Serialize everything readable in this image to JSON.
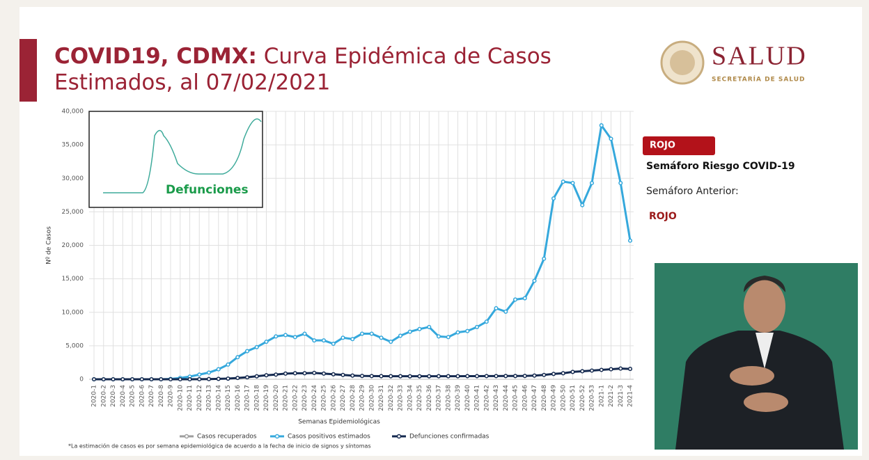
{
  "header": {
    "title_bold": "COVID19, CDMX:",
    "title_rest": " Curva Epidémica de Casos",
    "title_line2": "Estimados, al 07/02/2021"
  },
  "logo": {
    "name": "SALUD",
    "subtitle": "SECRETARÍA DE SALUD"
  },
  "semaforo": {
    "badge": "ROJO",
    "label": "Semáforo Riesgo COVID-19",
    "previous_label": "Semáforo Anterior:",
    "previous_value": "ROJO"
  },
  "inset": {
    "label": "Defunciones"
  },
  "footnote": "*La estimación de casos es por semana epidemiológica de acuerdo a la fecha de inicio de signos y síntomas",
  "chart_data": {
    "type": "line",
    "xlabel": "Semanas Epidemiológicas",
    "ylabel": "Nº de Casos",
    "categories": [
      "2020-1",
      "2020-2",
      "2020-3",
      "2020-4",
      "2020-5",
      "2020-6",
      "2020-7",
      "2020-8",
      "2020-9",
      "2020-10",
      "2020-11",
      "2020-12",
      "2020-13",
      "2020-14",
      "2020-15",
      "2020-16",
      "2020-17",
      "2020-18",
      "2020-19",
      "2020-20",
      "2020-21",
      "2020-22",
      "2020-23",
      "2020-24",
      "2020-25",
      "2020-26",
      "2020-27",
      "2020-28",
      "2020-29",
      "2020-30",
      "2020-31",
      "2020-32",
      "2020-33",
      "2020-34",
      "2020-35",
      "2020-36",
      "2020-37",
      "2020-38",
      "2020-39",
      "2020-40",
      "2020-41",
      "2020-42",
      "2020-43",
      "2020-44",
      "2020-45",
      "2020-46",
      "2020-47",
      "2020-48",
      "2020-49",
      "2020-50",
      "2020-51",
      "2020-52",
      "2020-53",
      "2021-1",
      "2021-2",
      "2021-3",
      "2021-4"
    ],
    "series": [
      {
        "name": "Casos recuperados",
        "color": "#9e9e9e",
        "values": [
          null,
          null,
          null,
          null,
          null,
          null,
          null,
          null,
          null,
          null,
          null,
          null,
          null,
          null,
          null,
          null,
          null,
          null,
          null,
          null,
          null,
          null,
          null,
          null,
          null,
          null,
          null,
          null,
          null,
          null,
          null,
          null,
          null,
          null,
          null,
          null,
          null,
          null,
          null,
          null,
          null,
          null,
          null,
          null,
          null,
          null,
          null,
          null,
          null,
          null,
          null,
          null,
          null,
          null,
          null,
          null,
          null
        ]
      },
      {
        "name": "Casos positivos estimados",
        "color": "#35a8dc",
        "values": [
          0,
          0,
          0,
          0,
          0,
          0,
          0,
          0,
          50,
          200,
          400,
          700,
          1000,
          1500,
          2200,
          3300,
          4200,
          4800,
          5600,
          6400,
          6600,
          6300,
          6800,
          5800,
          5800,
          5300,
          6200,
          6000,
          6800,
          6800,
          6200,
          5600,
          6500,
          7100,
          7500,
          7800,
          6400,
          6300,
          7000,
          7200,
          7800,
          8600,
          10600,
          10100,
          11900,
          12100,
          14700,
          18000,
          27000,
          29500,
          29300,
          26000,
          29300,
          37900,
          35900,
          29300,
          20700
        ]
      },
      {
        "name": "Defunciones confirmadas",
        "color": "#14294f",
        "values": [
          0,
          0,
          0,
          0,
          0,
          0,
          0,
          0,
          0,
          0,
          0,
          10,
          30,
          60,
          100,
          200,
          300,
          450,
          600,
          700,
          850,
          900,
          900,
          950,
          850,
          750,
          650,
          550,
          500,
          480,
          470,
          460,
          460,
          450,
          450,
          450,
          460,
          460,
          460,
          470,
          470,
          480,
          480,
          490,
          490,
          500,
          550,
          650,
          800,
          900,
          1100,
          1200,
          1300,
          1400,
          1500,
          1600,
          1550
        ]
      }
    ],
    "ylim": [
      0,
      40000
    ],
    "yticks": [
      0,
      {
        "value": 5000,
        "label": "5,000"
      },
      {
        "value": 10000,
        "label": "10,000"
      },
      {
        "value": 15000,
        "label": "15,000"
      },
      {
        "value": 20000,
        "label": "20,000"
      },
      {
        "value": 25000,
        "label": "25,000"
      },
      {
        "value": 30000,
        "label": "30,000"
      },
      {
        "value": 35000,
        "label": "35,000"
      },
      {
        "value": 40000,
        "label": "40,000"
      }
    ],
    "grid": true
  }
}
